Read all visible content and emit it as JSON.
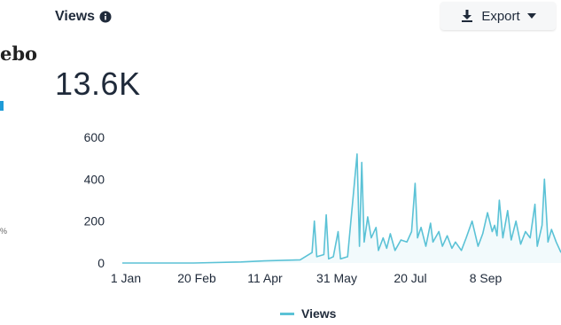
{
  "sidebar_fragment": {
    "text": "ebo",
    "percent": "%"
  },
  "header": {
    "title": "Views",
    "info_icon": "info-circle-icon",
    "export_label": "Export",
    "export_icon": "download-icon",
    "dropdown_icon": "caret-down-icon"
  },
  "summary": {
    "total": "13.6K"
  },
  "legend": {
    "label": "Views",
    "color": "#5bc2d6"
  },
  "chart_data": {
    "type": "line",
    "title": "Views",
    "xlabel": "",
    "ylabel": "",
    "x_ticks": [
      "1 Jan",
      "20 Feb",
      "11 Apr",
      "31 May",
      "20 Jul",
      "8 Sep"
    ],
    "y_ticks": [
      0,
      200,
      400,
      600
    ],
    "ylim": [
      0,
      600
    ],
    "xlim_days": [
      0,
      288
    ],
    "grid": false,
    "legend_position": "bottom",
    "color": "#5bc2d6",
    "series": [
      {
        "name": "Views",
        "points": [
          [
            0,
            0
          ],
          [
            60,
            0
          ],
          [
            100,
            5
          ],
          [
            120,
            10
          ],
          [
            150,
            15
          ],
          [
            160,
            50
          ],
          [
            162,
            200
          ],
          [
            164,
            30
          ],
          [
            170,
            40
          ],
          [
            172,
            230
          ],
          [
            174,
            20
          ],
          [
            178,
            30
          ],
          [
            182,
            150
          ],
          [
            184,
            20
          ],
          [
            190,
            30
          ],
          [
            198,
            520
          ],
          [
            200,
            80
          ],
          [
            202,
            480
          ],
          [
            204,
            100
          ],
          [
            207,
            220
          ],
          [
            210,
            120
          ],
          [
            214,
            170
          ],
          [
            216,
            60
          ],
          [
            220,
            120
          ],
          [
            223,
            70
          ],
          [
            226,
            140
          ],
          [
            230,
            60
          ],
          [
            235,
            110
          ],
          [
            240,
            100
          ],
          [
            244,
            150
          ],
          [
            247,
            380
          ],
          [
            249,
            120
          ],
          [
            252,
            170
          ],
          [
            256,
            80
          ],
          [
            260,
            190
          ],
          [
            262,
            100
          ],
          [
            267,
            150
          ],
          [
            270,
            80
          ],
          [
            274,
            130
          ],
          [
            278,
            70
          ],
          [
            281,
            100
          ],
          [
            286,
            60
          ],
          [
            290,
            120
          ],
          [
            295,
            200
          ],
          [
            300,
            80
          ],
          [
            304,
            140
          ],
          [
            308,
            240
          ],
          [
            312,
            150
          ],
          [
            314,
            180
          ],
          [
            316,
            130
          ],
          [
            318,
            300
          ],
          [
            321,
            120
          ],
          [
            325,
            250
          ],
          [
            328,
            110
          ],
          [
            332,
            200
          ],
          [
            336,
            90
          ],
          [
            340,
            150
          ],
          [
            344,
            120
          ],
          [
            348,
            280
          ],
          [
            350,
            80
          ],
          [
            354,
            180
          ],
          [
            356,
            400
          ],
          [
            359,
            100
          ],
          [
            362,
            160
          ],
          [
            366,
            100
          ],
          [
            370,
            50
          ]
        ]
      }
    ]
  }
}
